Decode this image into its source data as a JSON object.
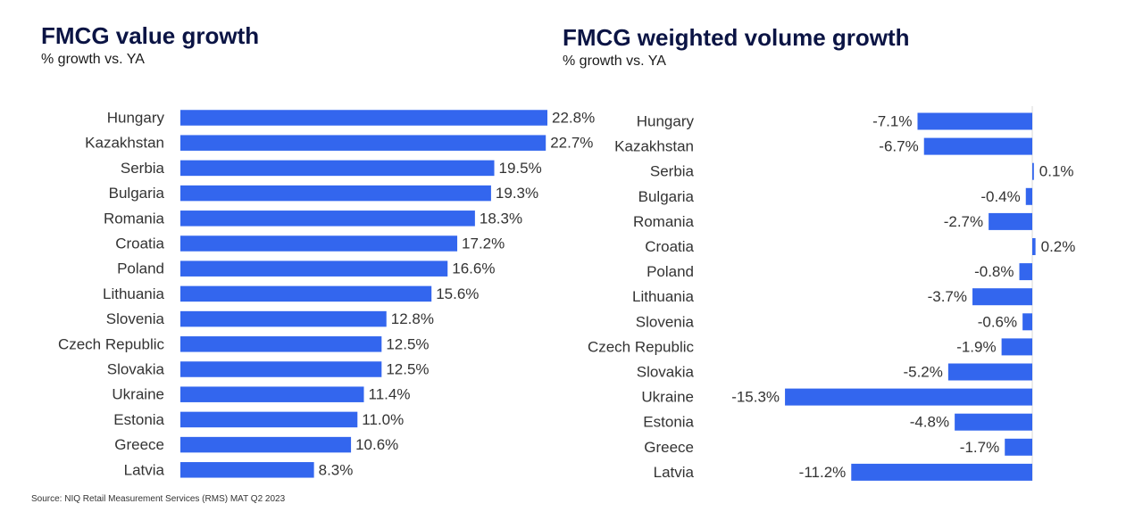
{
  "colors": {
    "bar": "#3366ee",
    "title": "#0b1444",
    "text": "#333333"
  },
  "source": "Source: NIQ Retail Measurement Services (RMS) MAT Q2 2023",
  "chart_data": [
    {
      "type": "bar",
      "orientation": "horizontal",
      "title": "FMCG value growth",
      "subtitle": "% growth vs. YA",
      "unit": "%",
      "categories": [
        "Hungary",
        "Kazakhstan",
        "Serbia",
        "Bulgaria",
        "Romania",
        "Croatia",
        "Poland",
        "Lithuania",
        "Slovenia",
        "Czech Republic",
        "Slovakia",
        "Ukraine",
        "Estonia",
        "Greece",
        "Latvia"
      ],
      "values": [
        22.8,
        22.7,
        19.5,
        19.3,
        18.3,
        17.2,
        16.6,
        15.6,
        12.8,
        12.5,
        12.5,
        11.4,
        11.0,
        10.6,
        8.3
      ],
      "labels": [
        "22.8%",
        "22.7%",
        "19.5%",
        "19.3%",
        "18.3%",
        "17.2%",
        "16.6%",
        "15.6%",
        "12.8%",
        "12.5%",
        "12.5%",
        "11.4%",
        "11.0%",
        "10.6%",
        "8.3%"
      ],
      "xlim": [
        0,
        22.8
      ],
      "grid": false,
      "legend": "none"
    },
    {
      "type": "bar",
      "orientation": "horizontal",
      "title": "FMCG weighted volume growth",
      "subtitle": "% growth vs. YA",
      "unit": "%",
      "categories": [
        "Hungary",
        "Kazakhstan",
        "Serbia",
        "Bulgaria",
        "Romania",
        "Croatia",
        "Poland",
        "Lithuania",
        "Slovenia",
        "Czech Republic",
        "Slovakia",
        "Ukraine",
        "Estonia",
        "Greece",
        "Latvia"
      ],
      "values": [
        -7.1,
        -6.7,
        0.1,
        -0.4,
        -2.7,
        0.2,
        -0.8,
        -3.7,
        -0.6,
        -1.9,
        -5.2,
        -15.3,
        -4.8,
        -1.7,
        -11.2
      ],
      "labels": [
        "-7.1%",
        "-6.7%",
        "0.1%",
        "-0.4%",
        "-2.7%",
        "0.2%",
        "-0.8%",
        "-3.7%",
        "-0.6%",
        "-1.9%",
        "-5.2%",
        "-15.3%",
        "-4.8%",
        "-1.7%",
        "-11.2%"
      ],
      "xlim": [
        -15.3,
        0.2
      ],
      "grid": false,
      "legend": "none"
    }
  ]
}
